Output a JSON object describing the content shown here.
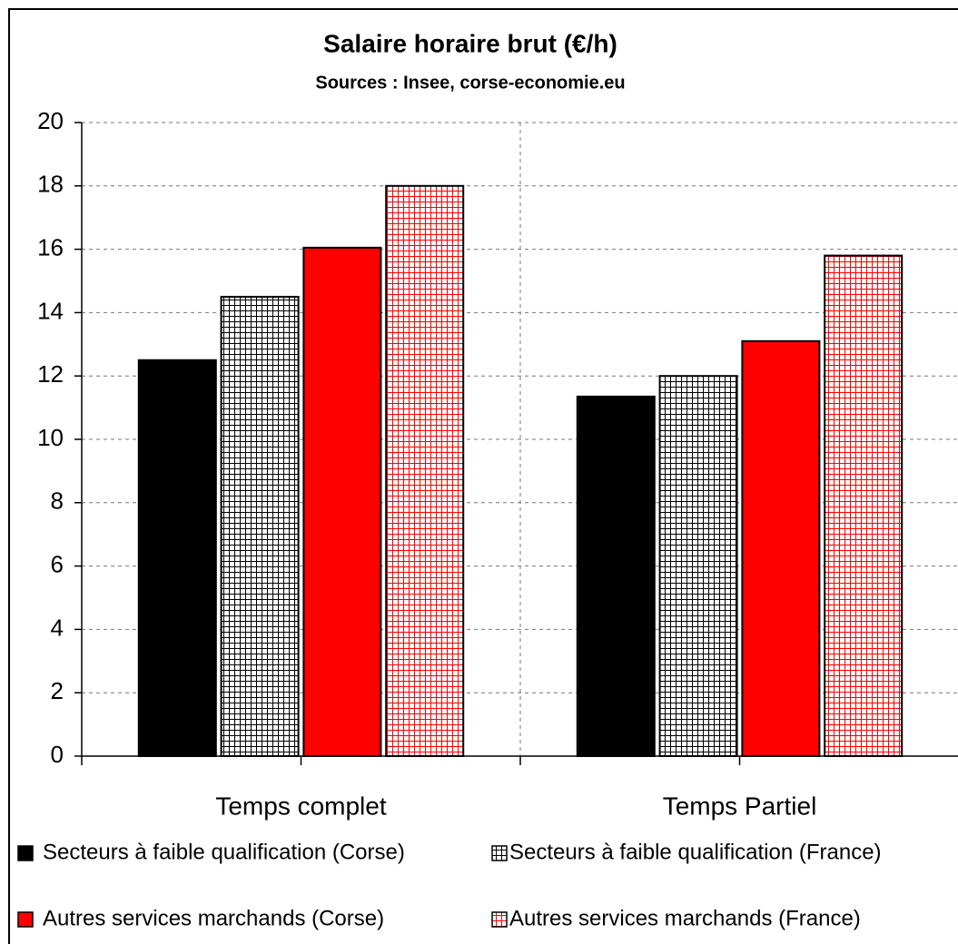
{
  "chart_data": {
    "type": "bar",
    "title": "Salaire horaire brut (€/h)",
    "subtitle": "Sources : Insee, corse-economie.eu",
    "categories": [
      "Temps complet",
      "Temps Partiel"
    ],
    "series": [
      {
        "name": "Secteurs à faible qualification (Corse)",
        "color": "#000000",
        "fill": "solid",
        "values": [
          12.5,
          11.35
        ]
      },
      {
        "name": "Secteurs à faible qualification (France)",
        "color": "#000000",
        "fill": "grid",
        "values": [
          14.5,
          12.0
        ]
      },
      {
        "name": "Autres services marchands (Corse)",
        "color": "#ff0000",
        "fill": "solid",
        "values": [
          16.05,
          13.1
        ]
      },
      {
        "name": "Autres services marchands (France)",
        "color": "#ff0000",
        "fill": "grid",
        "values": [
          18.0,
          15.8
        ]
      }
    ],
    "ylim": [
      0,
      20
    ],
    "yticks": [
      0,
      2,
      4,
      6,
      8,
      10,
      12,
      14,
      16,
      18,
      20
    ],
    "grid": true
  }
}
